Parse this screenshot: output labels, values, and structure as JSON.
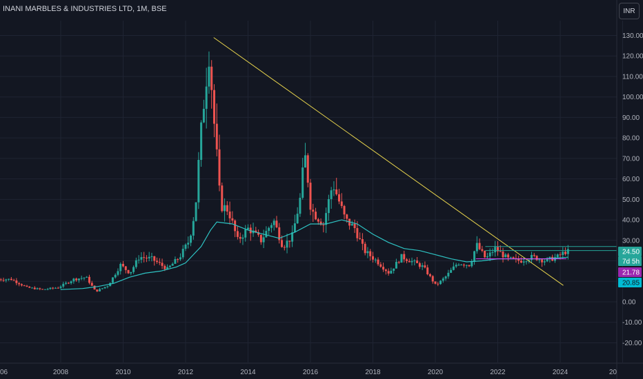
{
  "header": {
    "title": "INANI MARBLES & INDUSTRIES LTD, 1M, BSE",
    "currency": "INR"
  },
  "colors": {
    "background": "#131722",
    "up": "#26a69a",
    "down": "#ef5350",
    "ma": "#2ec4c4",
    "trendline": "#e8d44d",
    "resistance": "#26a69a",
    "pink_line": "#e040fb",
    "last_price_badge": "#26a69a",
    "countdown_badge": "#26a69a",
    "ma_badge_purple": "#9c27b0",
    "ma_badge_teal": "#00bcd4"
  },
  "badges": {
    "last_price": "24.50",
    "countdown": "7d 5h",
    "ma_value_1": "21.78",
    "ma_value_2": "20.85"
  },
  "chart_data": {
    "type": "candlestick",
    "title": "INANI MARBLES & INDUSTRIES LTD, 1M, BSE",
    "ylim": [
      -25,
      135
    ],
    "xlim": [
      2006.0,
      2026.0
    ],
    "y_ticks": [
      "130.00",
      "120.00",
      "110.00",
      "100.00",
      "90.00",
      "80.00",
      "70.00",
      "60.00",
      "50.00",
      "40.00",
      "30.00",
      "20.00",
      "10.00",
      "0.00",
      "-10.00",
      "-20.00"
    ],
    "x_ticks": [
      "06",
      "2008",
      "2010",
      "2012",
      "2014",
      "2016",
      "2018",
      "2020",
      "2022",
      "2024",
      "20"
    ],
    "grid": true,
    "ma_line": [
      [
        2008.0,
        6
      ],
      [
        2008.7,
        6.5
      ],
      [
        2009.2,
        7.5
      ],
      [
        2009.7,
        9
      ],
      [
        2010.2,
        12
      ],
      [
        2010.7,
        14
      ],
      [
        2011.2,
        15
      ],
      [
        2011.7,
        17
      ],
      [
        2012.0,
        19
      ],
      [
        2012.5,
        27
      ],
      [
        2012.8,
        35
      ],
      [
        2013.0,
        39
      ],
      [
        2013.5,
        38
      ],
      [
        2014.0,
        35
      ],
      [
        2014.5,
        33
      ],
      [
        2015.0,
        31
      ],
      [
        2015.5,
        34
      ],
      [
        2016.0,
        38
      ],
      [
        2016.5,
        38
      ],
      [
        2017.0,
        40
      ],
      [
        2017.5,
        38
      ],
      [
        2018.0,
        33
      ],
      [
        2018.5,
        29
      ],
      [
        2019.0,
        26
      ],
      [
        2019.5,
        25
      ],
      [
        2020.0,
        23
      ],
      [
        2020.5,
        21
      ],
      [
        2021.0,
        19.5
      ],
      [
        2021.5,
        20
      ],
      [
        2022.0,
        21
      ],
      [
        2022.5,
        21
      ],
      [
        2023.0,
        21
      ],
      [
        2023.5,
        21
      ],
      [
        2024.0,
        21.5
      ],
      [
        2024.25,
        21.8
      ]
    ],
    "trendline": {
      "x": [
        2012.9,
        2024.1
      ],
      "y": [
        129,
        8
      ]
    },
    "resistance_lines": [
      27,
      25
    ],
    "pink_segment": {
      "x": [
        2021.3,
        2024.2
      ],
      "y": [
        21,
        21
      ]
    },
    "ohlc_anchor": [
      [
        2006.0,
        11
      ],
      [
        2006.5,
        11
      ],
      [
        2007.0,
        7
      ],
      [
        2007.5,
        6
      ],
      [
        2008.0,
        7
      ],
      [
        2008.5,
        11
      ],
      [
        2008.9,
        12
      ],
      [
        2009.2,
        5
      ],
      [
        2009.6,
        8
      ],
      [
        2010.0,
        18
      ],
      [
        2010.3,
        14
      ],
      [
        2010.6,
        22
      ],
      [
        2011.0,
        21
      ],
      [
        2011.5,
        16
      ],
      [
        2011.9,
        22
      ],
      [
        2012.2,
        30
      ],
      [
        2012.4,
        46
      ],
      [
        2012.55,
        78
      ],
      [
        2012.7,
        103
      ],
      [
        2012.85,
        124
      ],
      [
        2012.95,
        96
      ],
      [
        2013.05,
        78
      ],
      [
        2013.2,
        47
      ],
      [
        2013.45,
        45
      ],
      [
        2013.75,
        30
      ],
      [
        2014.1,
        36
      ],
      [
        2014.5,
        30
      ],
      [
        2014.9,
        40
      ],
      [
        2015.2,
        27
      ],
      [
        2015.5,
        32
      ],
      [
        2015.75,
        50
      ],
      [
        2015.9,
        72
      ],
      [
        2016.0,
        60
      ],
      [
        2016.1,
        45
      ],
      [
        2016.5,
        38
      ],
      [
        2016.8,
        58
      ],
      [
        2017.2,
        40
      ],
      [
        2017.5,
        36
      ],
      [
        2017.8,
        25
      ],
      [
        2018.2,
        20
      ],
      [
        2018.6,
        14
      ],
      [
        2019.0,
        22
      ],
      [
        2019.3,
        20
      ],
      [
        2019.7,
        17
      ],
      [
        2020.1,
        8
      ],
      [
        2020.4,
        12
      ],
      [
        2020.8,
        19
      ],
      [
        2021.2,
        18
      ],
      [
        2021.4,
        28
      ],
      [
        2021.7,
        21
      ],
      [
        2022.0,
        26
      ],
      [
        2022.4,
        21
      ],
      [
        2022.8,
        20
      ],
      [
        2023.2,
        22
      ],
      [
        2023.6,
        20
      ],
      [
        2024.0,
        22
      ],
      [
        2024.25,
        24.5
      ]
    ]
  }
}
